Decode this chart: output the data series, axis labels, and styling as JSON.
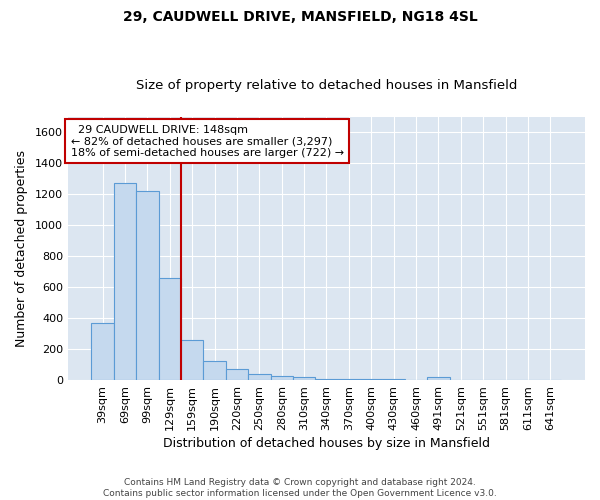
{
  "title1": "29, CAUDWELL DRIVE, MANSFIELD, NG18 4SL",
  "title2": "Size of property relative to detached houses in Mansfield",
  "xlabel": "Distribution of detached houses by size in Mansfield",
  "ylabel": "Number of detached properties",
  "annotation_line1": "  29 CAUDWELL DRIVE: 148sqm",
  "annotation_line2": "← 82% of detached houses are smaller (3,297)",
  "annotation_line3": "18% of semi-detached houses are larger (722) →",
  "footer1": "Contains HM Land Registry data © Crown copyright and database right 2024.",
  "footer2": "Contains public sector information licensed under the Open Government Licence v3.0.",
  "categories": [
    "39sqm",
    "69sqm",
    "99sqm",
    "129sqm",
    "159sqm",
    "190sqm",
    "220sqm",
    "250sqm",
    "280sqm",
    "310sqm",
    "340sqm",
    "370sqm",
    "400sqm",
    "430sqm",
    "460sqm",
    "491sqm",
    "521sqm",
    "551sqm",
    "581sqm",
    "611sqm",
    "641sqm"
  ],
  "values": [
    370,
    1270,
    1220,
    660,
    260,
    125,
    70,
    38,
    25,
    18,
    10,
    8,
    8,
    6,
    0,
    18,
    0,
    0,
    0,
    0,
    0
  ],
  "bar_color": "#c5d9ee",
  "bar_edge_color": "#5b9bd5",
  "red_line_index": 4,
  "ylim": [
    0,
    1700
  ],
  "yticks": [
    0,
    200,
    400,
    600,
    800,
    1000,
    1200,
    1400,
    1600
  ],
  "background_color": "#dce6f1",
  "grid_color": "#ffffff",
  "annotation_box_color": "#ffffff",
  "annotation_box_edge": "#c00000",
  "red_line_color": "#c00000",
  "title1_fontsize": 10,
  "title2_fontsize": 9.5,
  "tick_fontsize": 8,
  "label_fontsize": 9,
  "footer_fontsize": 6.5,
  "ann_fontsize": 8
}
